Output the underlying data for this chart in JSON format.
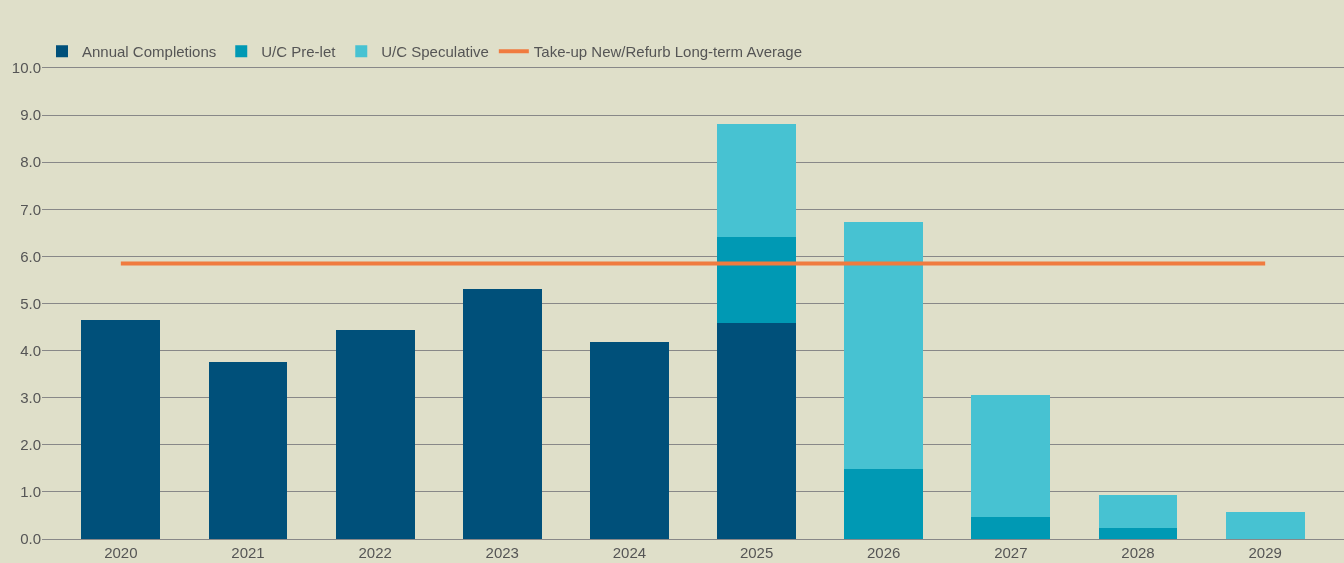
{
  "chart_data": {
    "type": "bar",
    "stacked": true,
    "categories": [
      "2020",
      "2021",
      "2022",
      "2023",
      "2024",
      "2025",
      "2026",
      "2027",
      "2028",
      "2029"
    ],
    "series": [
      {
        "name": "Annual Completions",
        "color": "#00507a",
        "values": [
          4.66,
          3.75,
          4.43,
          5.3,
          4.19,
          4.58,
          null,
          null,
          null,
          null
        ]
      },
      {
        "name": "U/C Pre-let",
        "color": "#0099b4",
        "values": [
          null,
          null,
          null,
          null,
          null,
          1.84,
          1.48,
          0.47,
          0.23,
          null
        ]
      },
      {
        "name": "U/C Speculative",
        "color": "#47c2d2",
        "values": [
          null,
          null,
          null,
          null,
          null,
          2.39,
          5.26,
          2.58,
          0.7,
          0.57
        ]
      }
    ],
    "ref_lines": [
      {
        "axis": "y",
        "value": 5.85,
        "label": "Take-up New/Refurb Long-term Average",
        "color": "#f07b3f"
      }
    ],
    "ylim": [
      0,
      10
    ],
    "yticks": [
      {
        "value": 0,
        "label": "0.0"
      },
      {
        "value": 1,
        "label": "1.0"
      },
      {
        "value": 2,
        "label": "2.0"
      },
      {
        "value": 3,
        "label": "3.0"
      },
      {
        "value": 4,
        "label": "4.0"
      },
      {
        "value": 5,
        "label": "5.0"
      },
      {
        "value": 6,
        "label": "6.0"
      },
      {
        "value": 7,
        "label": "7.0"
      },
      {
        "value": 8,
        "label": "8.0"
      },
      {
        "value": 9,
        "label": "9.0"
      },
      {
        "value": 10,
        "label": "10.0"
      }
    ],
    "grid": "y",
    "legend": "top left"
  }
}
